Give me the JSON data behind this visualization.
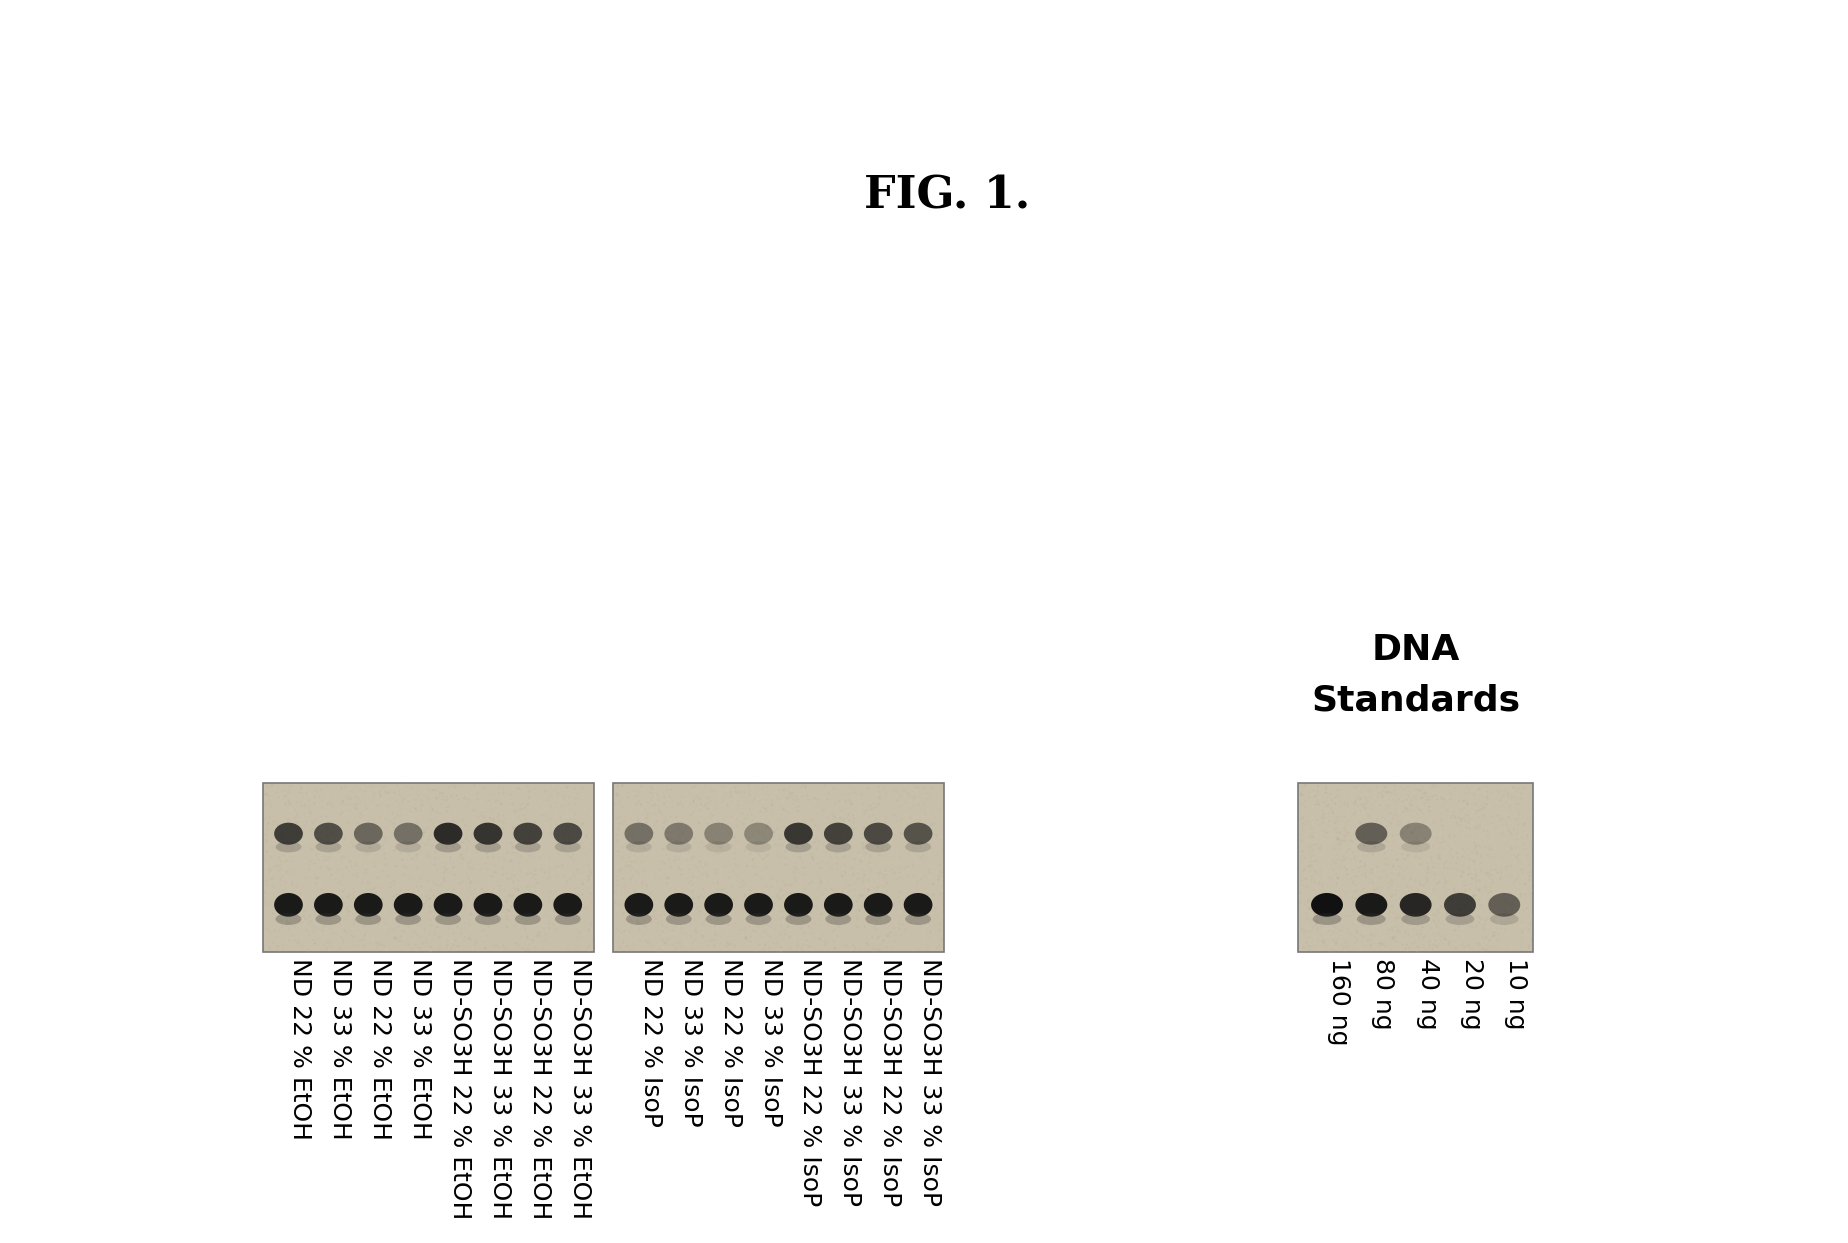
{
  "title": "FIG. 1.",
  "title_fontsize": 32,
  "title_fontweight": "bold",
  "background_color": "#ffffff",
  "group1_labels": [
    "ND 22 % EtOH",
    "ND 33 % EtOH",
    "ND 22 % EtOH",
    "ND 33 % EtOH",
    "ND-SO3H 22 % EtOH",
    "ND-SO3H 33 % EtOH",
    "ND-SO3H 22 % EtOH",
    "ND-SO3H 33 % EtOH"
  ],
  "group2_labels": [
    "ND 22 % IsoP",
    "ND 33 % IsoP",
    "ND 22 % IsoP",
    "ND 33 % IsoP",
    "ND-SO3H 22 % IsoP",
    "ND-SO3H 33 % IsoP",
    "ND-SO3H 22 % IsoP",
    "ND-SO3H 33 % IsoP"
  ],
  "group3_labels": [
    "160 ng",
    "80 ng",
    "40 ng",
    "20 ng",
    "10 ng"
  ],
  "std_label_line1": "DNA",
  "std_label_line2": "Standards",
  "label_fontsize": 18,
  "std_fontsize": 26,
  "gel_color": "#c8bfaa",
  "band_dark": "#111111",
  "panel1_upper_intensities": [
    0.75,
    0.65,
    0.5,
    0.45,
    0.85,
    0.8,
    0.72,
    0.68
  ],
  "panel1_lower_intensities": [
    0.95,
    0.95,
    0.95,
    0.95,
    0.95,
    0.95,
    0.95,
    0.95
  ],
  "panel2_upper_intensities": [
    0.45,
    0.4,
    0.35,
    0.32,
    0.78,
    0.72,
    0.68,
    0.62
  ],
  "panel2_lower_intensities": [
    0.95,
    0.95,
    0.95,
    0.95,
    0.95,
    0.95,
    0.95,
    0.95
  ],
  "panel3_upper_has": [
    false,
    true,
    true,
    false,
    false
  ],
  "panel3_upper_intensities": [
    0.0,
    0.55,
    0.35,
    0.0,
    0.0
  ],
  "panel3_lower_intensities": [
    1.0,
    0.95,
    0.88,
    0.75,
    0.55
  ]
}
